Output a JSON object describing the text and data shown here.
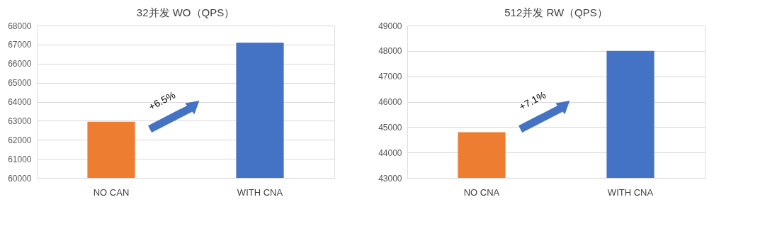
{
  "chart_data": [
    {
      "type": "bar",
      "title": "32并发 WO（QPS）",
      "categories": [
        "NO CAN",
        "WITH CNA"
      ],
      "values": [
        62950,
        67100
      ],
      "colors": [
        "#ed7d31",
        "#4472c4"
      ],
      "ylim": [
        60000,
        68000
      ],
      "yticks": [
        60000,
        61000,
        62000,
        63000,
        64000,
        65000,
        66000,
        67000,
        68000
      ],
      "grid": "y",
      "annotations": [
        "+6.5%"
      ]
    },
    {
      "type": "bar",
      "title": "512并发 RW（QPS）",
      "categories": [
        "NO CNA",
        "WITH CNA"
      ],
      "values": [
        44800,
        48000
      ],
      "colors": [
        "#ed7d31",
        "#4472c4"
      ],
      "ylim": [
        43000,
        49000
      ],
      "yticks": [
        43000,
        44000,
        45000,
        46000,
        47000,
        48000,
        49000
      ],
      "grid": "y",
      "annotations": [
        "+7.1%"
      ]
    }
  ]
}
